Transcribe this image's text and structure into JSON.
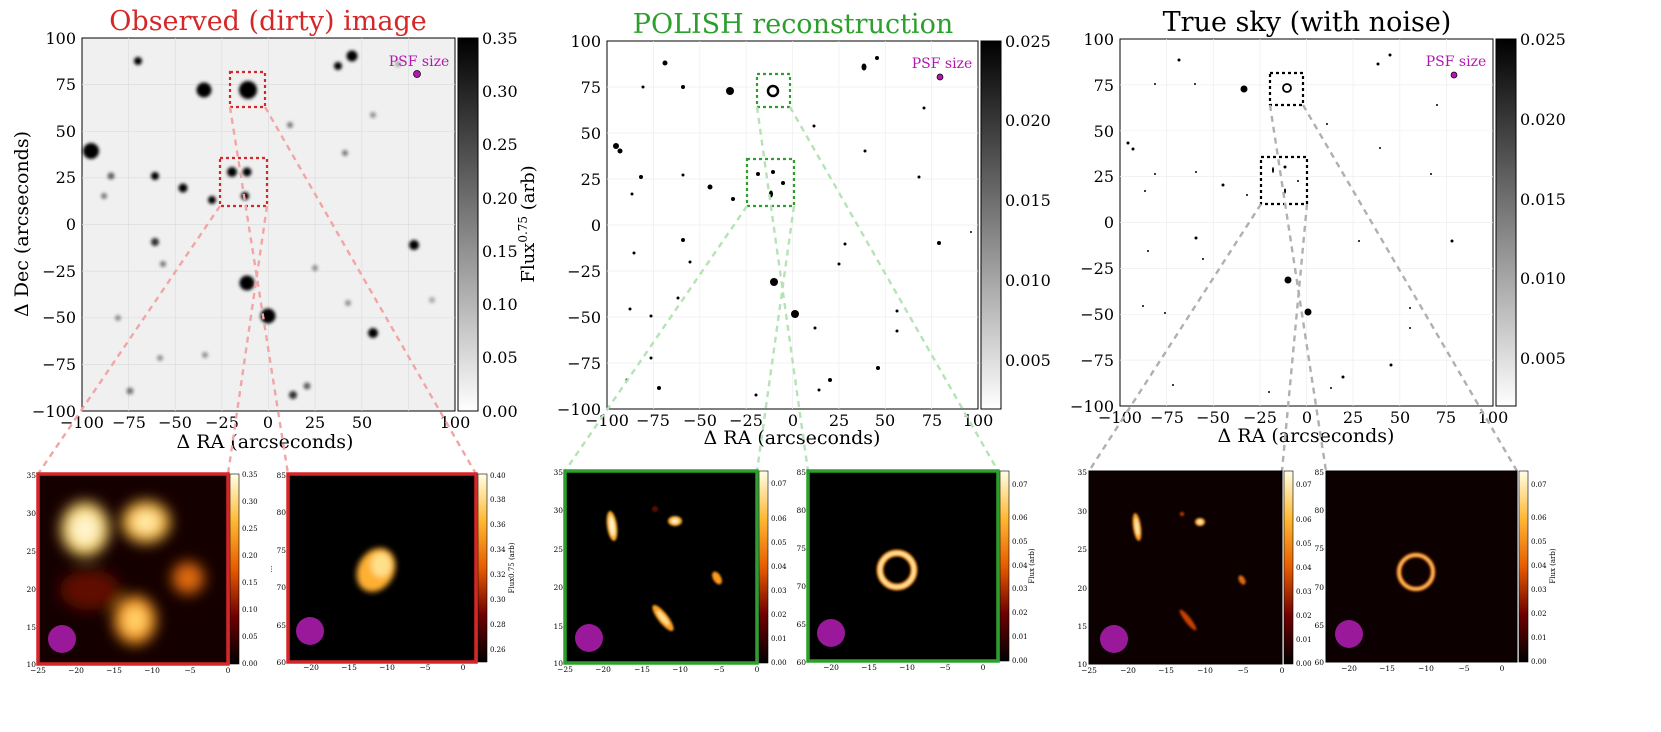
{
  "figure": {
    "main_panels": [
      {
        "id": "dirty",
        "title": "Observed (dirty) image",
        "title_color": "#d62728",
        "box_color": "#d62728",
        "link_color": "#f2a5a5",
        "xlabel": "Δ RA (arcseconds)",
        "ylabel": "Δ Dec (arcseconds)",
        "colorbar_label": "Flux",
        "colorbar_label_sup": "0.75",
        "colorbar_label_suffix": " (arb)",
        "colorbar_ticks": [
          "0.00",
          "0.05",
          "0.10",
          "0.15",
          "0.20",
          "0.25",
          "0.30",
          "0.35"
        ],
        "psf_label": "PSF size"
      },
      {
        "id": "polish",
        "title": "POLISH reconstruction",
        "title_color": "#2ca02c",
        "box_color": "#2ca02c",
        "link_color": "#b5e3b5",
        "xlabel": "Δ RA (arcseconds)",
        "ylabel": "",
        "colorbar_label": "",
        "colorbar_ticks": [
          "0.005",
          "0.010",
          "0.015",
          "0.020",
          "0.025"
        ],
        "psf_label": "PSF size"
      },
      {
        "id": "true",
        "title": "True sky (with noise)",
        "title_color": "#000000",
        "box_color": "#000000",
        "link_color": "#b0b0b0",
        "xlabel": "Δ RA (arcseconds)",
        "ylabel": "",
        "colorbar_label": "",
        "colorbar_ticks": [
          "0.005",
          "0.010",
          "0.015",
          "0.020",
          "0.025"
        ],
        "psf_label": "PSF size"
      }
    ],
    "axis_ticks": [
      "−100",
      "−75",
      "−50",
      "−25",
      "0",
      "25",
      "50",
      "75",
      "100"
    ],
    "insets": [
      {
        "panel": "dirty",
        "cb_ticks": [
          "0.00",
          "0.05",
          "0.10",
          "0.15",
          "0.20",
          "0.25",
          "0.30",
          "0.35"
        ],
        "cb_label": "..."
      },
      {
        "panel": "dirty",
        "cb_ticks": [
          "0.26",
          "0.28",
          "0.30",
          "0.32",
          "0.34",
          "0.36",
          "0.38",
          "0.40"
        ],
        "cb_label": "Flux0.75 (arb)"
      },
      {
        "panel": "polish",
        "cb_ticks": [
          "0.00",
          "0.01",
          "0.02",
          "0.03",
          "0.04",
          "0.05",
          "0.06",
          "0.07"
        ],
        "cb_label": ""
      },
      {
        "panel": "polish",
        "cb_ticks": [
          "0.00",
          "0.01",
          "0.02",
          "0.03",
          "0.04",
          "0.05",
          "0.06",
          "0.07"
        ],
        "cb_label": "Flux (arb)"
      },
      {
        "panel": "true",
        "cb_ticks": [
          "0.00",
          "0.01",
          "0.02",
          "0.03",
          "0.04",
          "0.05",
          "0.06",
          "0.07"
        ],
        "cb_label": ""
      },
      {
        "panel": "true",
        "cb_ticks": [
          "0.00",
          "0.01",
          "0.02",
          "0.03",
          "0.04",
          "0.05",
          "0.06",
          "0.07"
        ],
        "cb_label": "Flux (arb)"
      }
    ],
    "inset_a_yticks": [
      "10",
      "15",
      "20",
      "25",
      "30",
      "35"
    ],
    "inset_a_xticks": [
      "−25",
      "−20",
      "−15",
      "−10",
      "−5",
      "0"
    ],
    "inset_b_yticks": [
      "60",
      "65",
      "70",
      "75",
      "80",
      "85"
    ],
    "inset_b_xticks": [
      "−20",
      "−15",
      "−10",
      "−5",
      "0"
    ]
  }
}
